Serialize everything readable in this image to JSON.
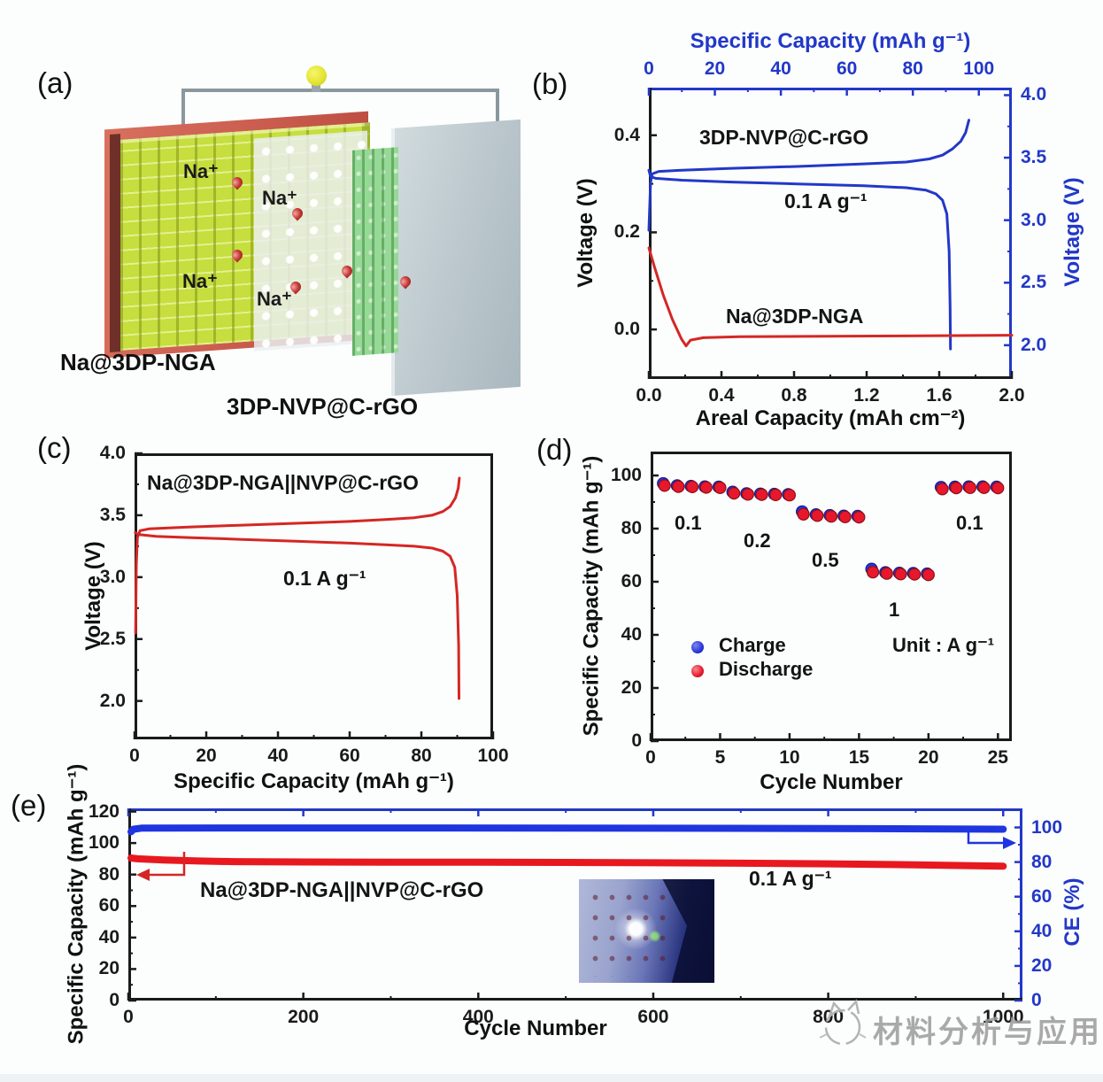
{
  "watermark": {
    "text": "材料分析与应用",
    "color": "#9b9b9b"
  },
  "panels": {
    "a": {
      "letter": "(a)",
      "anode_label": "Na@3DP-NGA",
      "cathode_label": "3DP-NVP@C-rGO",
      "ion_label": "Na⁺"
    },
    "b": {
      "letter": "(b)"
    },
    "c": {
      "letter": "(c)"
    },
    "d": {
      "letter": "(d)"
    },
    "e": {
      "letter": "(e)"
    }
  },
  "chart_data": [
    {
      "id": "b",
      "type": "line",
      "title_top": "Specific Capacity (mAh g⁻¹)",
      "xlabel": "Areal Capacity (mAh cm⁻²)",
      "ylabel_left": "Voltage (V)",
      "ylabel_right": "Voltage (V)",
      "annotations": [
        "3DP-NVP@C-rGO",
        "0.1 A g⁻¹",
        "Na@3DP-NGA"
      ],
      "frame": {
        "top": "#2238c8",
        "right": "#2238c8",
        "bottom": "#1a1a1a",
        "left": "#1a1a1a"
      },
      "axes": {
        "bottom": {
          "lim": [
            0,
            2.0
          ],
          "ticks": [
            0.0,
            0.4,
            0.8,
            1.2,
            1.6,
            2.0
          ],
          "labels": [
            "0.0",
            "0.4",
            "0.8",
            "1.2",
            "1.6",
            "2.0"
          ],
          "color": "#1a1a1a"
        },
        "top": {
          "lim": [
            0,
            110
          ],
          "ticks": [
            0,
            20,
            40,
            60,
            80,
            100
          ],
          "labels": [
            "0",
            "20",
            "40",
            "60",
            "80",
            "100"
          ],
          "color": "#2238c8"
        },
        "left": {
          "lim": [
            -0.102,
            0.498
          ],
          "ticks": [
            0.0,
            0.2,
            0.4
          ],
          "labels": [
            "0.0",
            "0.2",
            "0.4"
          ],
          "color": "#1a1a1a"
        },
        "right": {
          "lim": [
            1.73,
            4.06
          ],
          "ticks": [
            2.0,
            2.5,
            3.0,
            3.5,
            4.0
          ],
          "labels": [
            "2.0",
            "2.5",
            "3.0",
            "3.5",
            "4.0"
          ],
          "color": "#2238c8"
        }
      },
      "series": [
        {
          "name": "NVP-charge",
          "color": "#2238c8",
          "width": 3,
          "xaxis": "top",
          "yaxis": "right",
          "points": [
            [
              0,
              2.92
            ],
            [
              0.5,
              3.3
            ],
            [
              1,
              3.37
            ],
            [
              3,
              3.39
            ],
            [
              10,
              3.4
            ],
            [
              25,
              3.415
            ],
            [
              45,
              3.43
            ],
            [
              65,
              3.45
            ],
            [
              78,
              3.465
            ],
            [
              85,
              3.49
            ],
            [
              89,
              3.52
            ],
            [
              92,
              3.57
            ],
            [
              94.5,
              3.63
            ],
            [
              96,
              3.7
            ],
            [
              97,
              3.8
            ]
          ]
        },
        {
          "name": "NVP-discharge",
          "color": "#2238c8",
          "width": 3,
          "xaxis": "top",
          "yaxis": "right",
          "points": [
            [
              0,
              3.4
            ],
            [
              0.5,
              3.35
            ],
            [
              2,
              3.335
            ],
            [
              10,
              3.32
            ],
            [
              25,
              3.305
            ],
            [
              45,
              3.29
            ],
            [
              65,
              3.275
            ],
            [
              78,
              3.26
            ],
            [
              84,
              3.24
            ],
            [
              87,
              3.21
            ],
            [
              89,
              3.16
            ],
            [
              90.3,
              3.05
            ],
            [
              91,
              2.75
            ],
            [
              91.3,
              2.3
            ],
            [
              91.4,
              1.97
            ]
          ]
        },
        {
          "name": "Na-plating",
          "color": "#d42724",
          "width": 3,
          "xaxis": "bottom",
          "yaxis": "left",
          "points": [
            [
              0,
              0.168
            ],
            [
              0.03,
              0.13
            ],
            [
              0.08,
              0.07
            ],
            [
              0.13,
              0.02
            ],
            [
              0.18,
              -0.02
            ],
            [
              0.205,
              -0.034
            ],
            [
              0.23,
              -0.022
            ],
            [
              0.3,
              -0.017
            ],
            [
              0.5,
              -0.015
            ],
            [
              1.0,
              -0.014
            ],
            [
              1.5,
              -0.013
            ],
            [
              2.0,
              -0.012
            ]
          ]
        }
      ]
    },
    {
      "id": "c",
      "type": "line",
      "xlabel": "Specific Capacity (mAh g⁻¹)",
      "ylabel_left": "Voltage (V)",
      "annotations": [
        "Na@3DP-NGA||NVP@C-rGO",
        "0.1 A g⁻¹"
      ],
      "frame": {
        "top": "#1a1a1a",
        "right": "#1a1a1a",
        "bottom": "#1a1a1a",
        "left": "#1a1a1a"
      },
      "axes": {
        "bottom": {
          "lim": [
            0,
            100
          ],
          "ticks": [
            0,
            20,
            40,
            60,
            80,
            100
          ],
          "labels": [
            "0",
            "20",
            "40",
            "60",
            "80",
            "100"
          ],
          "color": "#1a1a1a"
        },
        "left": {
          "lim": [
            1.69,
            4.0
          ],
          "ticks": [
            2.0,
            2.5,
            3.0,
            3.5,
            4.0
          ],
          "labels": [
            "2.0",
            "2.5",
            "3.0",
            "3.5",
            "4.0"
          ],
          "color": "#1a1a1a"
        }
      },
      "series": [
        {
          "name": "full-cell-charge",
          "color": "#d42724",
          "width": 3,
          "points": [
            [
              0.3,
              2.55
            ],
            [
              0.5,
              3.1
            ],
            [
              0.8,
              3.32
            ],
            [
              1.5,
              3.375
            ],
            [
              4,
              3.39
            ],
            [
              15,
              3.405
            ],
            [
              30,
              3.42
            ],
            [
              45,
              3.435
            ],
            [
              60,
              3.45
            ],
            [
              70,
              3.465
            ],
            [
              78,
              3.48
            ],
            [
              83,
              3.5
            ],
            [
              86,
              3.53
            ],
            [
              88,
              3.57
            ],
            [
              89.5,
              3.64
            ],
            [
              90.3,
              3.72
            ],
            [
              90.6,
              3.8
            ]
          ]
        },
        {
          "name": "full-cell-discharge",
          "color": "#d42724",
          "width": 3,
          "points": [
            [
              0.2,
              3.36
            ],
            [
              1,
              3.345
            ],
            [
              6,
              3.33
            ],
            [
              15,
              3.32
            ],
            [
              30,
              3.305
            ],
            [
              45,
              3.29
            ],
            [
              60,
              3.275
            ],
            [
              70,
              3.262
            ],
            [
              78,
              3.25
            ],
            [
              83,
              3.235
            ],
            [
              86,
              3.21
            ],
            [
              88,
              3.17
            ],
            [
              89.3,
              3.08
            ],
            [
              90,
              2.85
            ],
            [
              90.4,
              2.45
            ],
            [
              90.5,
              2.02
            ]
          ]
        }
      ]
    },
    {
      "id": "d",
      "type": "scatter",
      "xlabel": "Cycle Number",
      "ylabel_left": "Specific Capacity (mAh g⁻¹)",
      "legend": [
        "Charge",
        "Discharge"
      ],
      "unit_note": "Unit : A g⁻¹",
      "rate_labels": [
        "0.1",
        "0.2",
        "0.5",
        "1",
        "0.1"
      ],
      "rates_A_per_g": [
        0.1,
        0.2,
        0.5,
        1,
        0.1
      ],
      "frame": {
        "top": "#1a1a1a",
        "right": "#1a1a1a",
        "bottom": "#1a1a1a",
        "left": "#1a1a1a"
      },
      "axes": {
        "bottom": {
          "lim": [
            0,
            26
          ],
          "ticks": [
            0,
            5,
            10,
            15,
            20,
            25
          ],
          "labels": [
            "0",
            "5",
            "10",
            "15",
            "20",
            "25"
          ],
          "color": "#1a1a1a"
        },
        "left": {
          "lim": [
            0,
            109
          ],
          "ticks": [
            0,
            20,
            40,
            60,
            80,
            100
          ],
          "labels": [
            "0",
            "20",
            "40",
            "60",
            "80",
            "100"
          ],
          "color": "#1a1a1a"
        }
      },
      "scatter": [
        {
          "name": "Charge",
          "color": "#2a35d8",
          "edge": "#141d8c",
          "r": 6.5,
          "dx": -1.5,
          "points": [
            [
              1,
              97.0
            ],
            [
              2,
              96.2
            ],
            [
              3,
              96.0
            ],
            [
              4,
              95.8
            ],
            [
              5,
              95.7
            ],
            [
              6,
              93.8
            ],
            [
              7,
              93.2
            ],
            [
              8,
              93.1
            ],
            [
              9,
              93.0
            ],
            [
              10,
              92.9
            ],
            [
              11,
              86.4
            ],
            [
              12,
              85.3
            ],
            [
              13,
              85.0
            ],
            [
              14,
              84.8
            ],
            [
              15,
              84.7
            ],
            [
              16,
              64.8
            ],
            [
              17,
              63.5
            ],
            [
              18,
              63.3
            ],
            [
              19,
              63.2
            ],
            [
              20,
              63.0
            ],
            [
              21,
              95.6
            ],
            [
              22,
              95.7
            ],
            [
              23,
              95.8
            ],
            [
              24,
              95.8
            ],
            [
              25,
              95.7
            ]
          ]
        },
        {
          "name": "Discharge",
          "color": "#e8182c",
          "edge": "#8c1018",
          "r": 6.5,
          "dx": 0,
          "points": [
            [
              1,
              96.2
            ],
            [
              2,
              95.8
            ],
            [
              3,
              95.7
            ],
            [
              4,
              95.5
            ],
            [
              5,
              95.4
            ],
            [
              6,
              93.3
            ],
            [
              7,
              92.9
            ],
            [
              8,
              92.8
            ],
            [
              9,
              92.7
            ],
            [
              10,
              92.6
            ],
            [
              11,
              85.4
            ],
            [
              12,
              84.9
            ],
            [
              13,
              84.6
            ],
            [
              14,
              84.4
            ],
            [
              15,
              84.3
            ],
            [
              16,
              63.6
            ],
            [
              17,
              63.1
            ],
            [
              18,
              62.9
            ],
            [
              19,
              62.8
            ],
            [
              20,
              62.6
            ],
            [
              21,
              94.9
            ],
            [
              22,
              95.3
            ],
            [
              23,
              95.4
            ],
            [
              24,
              95.4
            ],
            [
              25,
              95.3
            ]
          ]
        }
      ]
    },
    {
      "id": "e",
      "type": "line",
      "xlabel": "Cycle Number",
      "ylabel_left": "Specific Capacity (mAh g⁻¹)",
      "ylabel_right": "CE (%)",
      "annotations": [
        "Na@3DP-NGA||NVP@C-rGO",
        "0.1 A g⁻¹"
      ],
      "frame": {
        "top": "#2238c8",
        "right": "#2238c8",
        "bottom": "#1a1a1a",
        "left": "#1a1a1a"
      },
      "axes": {
        "bottom": {
          "lim": [
            0,
            1022
          ],
          "ticks": [
            0,
            200,
            400,
            600,
            800,
            1000
          ],
          "labels": [
            "0",
            "200",
            "400",
            "600",
            "800",
            "1000"
          ],
          "color": "#1a1a1a"
        },
        "top": {
          "lim": [
            0,
            1022
          ],
          "ticks": [
            0,
            200,
            400,
            600,
            800,
            1000
          ],
          "color": "#2238c8"
        },
        "left": {
          "lim": [
            0,
            122
          ],
          "ticks": [
            0,
            20,
            40,
            60,
            80,
            100,
            120
          ],
          "labels": [
            "0",
            "20",
            "40",
            "60",
            "80",
            "100",
            "120"
          ],
          "color": "#1a1a1a"
        },
        "right": {
          "lim": [
            0,
            111
          ],
          "ticks": [
            0,
            20,
            40,
            60,
            80,
            100
          ],
          "labels": [
            "0",
            "20",
            "40",
            "60",
            "80",
            "100"
          ],
          "color": "#2238c8"
        }
      },
      "series": [
        {
          "name": "discharge-capacity",
          "color": "#e8181f",
          "width": 8,
          "xaxis": "bottom",
          "yaxis": "left",
          "points": [
            [
              3,
              90.5
            ],
            [
              10,
              90.0
            ],
            [
              40,
              89.3
            ],
            [
              80,
              88.6
            ],
            [
              120,
              88.2
            ],
            [
              200,
              88.0
            ],
            [
              300,
              87.9
            ],
            [
              400,
              87.8
            ],
            [
              500,
              87.7
            ],
            [
              600,
              87.5
            ],
            [
              700,
              87.2
            ],
            [
              800,
              86.8
            ],
            [
              900,
              86.2
            ],
            [
              1000,
              85.3
            ]
          ]
        },
        {
          "name": "coulombic-efficiency",
          "color": "#1f35e0",
          "width": 8,
          "xaxis": "bottom",
          "yaxis": "right",
          "points": [
            [
              3,
              97.5
            ],
            [
              6,
              99.0
            ],
            [
              15,
              99.6
            ],
            [
              100,
              99.7
            ],
            [
              300,
              99.7
            ],
            [
              500,
              99.6
            ],
            [
              700,
              99.5
            ],
            [
              850,
              99.3
            ],
            [
              1000,
              99.0
            ]
          ]
        }
      ]
    }
  ]
}
